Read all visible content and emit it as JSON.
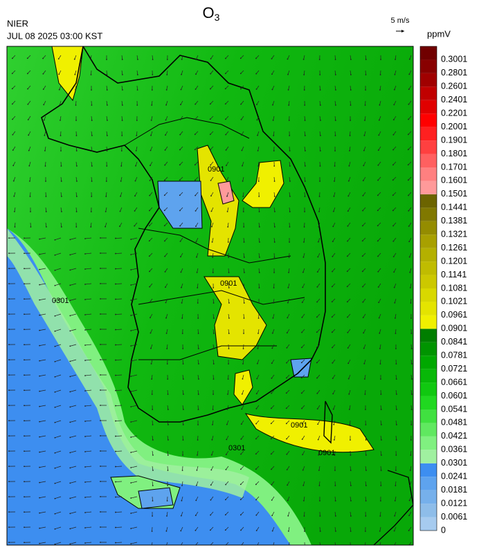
{
  "header": {
    "title": {
      "symbol": "O",
      "subscript": "3"
    },
    "agency": "NIER",
    "timestamp": "JUL 08 2025 03:00 KST",
    "wind_scale": "5 m/s",
    "unit": "ppmV"
  },
  "colorbar": {
    "levels": [
      0,
      0.0061,
      0.0121,
      0.0181,
      0.0241,
      0.0301,
      0.0361,
      0.0421,
      0.0481,
      0.0541,
      0.0601,
      0.0661,
      0.0721,
      0.0781,
      0.0841,
      0.0901,
      0.0961,
      0.1021,
      0.1081,
      0.1141,
      0.1201,
      0.1261,
      0.1321,
      0.1381,
      0.1441,
      0.1501,
      0.1601,
      0.1701,
      0.1801,
      0.1901,
      0.2001,
      0.2201,
      0.2401,
      0.2601,
      0.2801,
      0.3001
    ],
    "colors": [
      "#a6cbef",
      "#8ebde9",
      "#76b0eb",
      "#5ea3ee",
      "#3d8ef0",
      "#a0f0a0",
      "#80f080",
      "#60e860",
      "#40e040",
      "#20d820",
      "#10c810",
      "#08b808",
      "#00a800",
      "#009400",
      "#007e00",
      "#f0f000",
      "#e4e400",
      "#d8d800",
      "#ccc800",
      "#c0bc00",
      "#b4b000",
      "#a8a000",
      "#948c00",
      "#807800",
      "#6c6400",
      "#ff9a9a",
      "#ff8080",
      "#ff6060",
      "#ff4040",
      "#ff2020",
      "#ff0000",
      "#e00000",
      "#c00000",
      "#a00000",
      "#880000",
      "#700000"
    ]
  },
  "map": {
    "contour_labels": [
      "0901",
      "0901",
      "0901",
      "0301",
      "0301",
      "0901"
    ]
  }
}
